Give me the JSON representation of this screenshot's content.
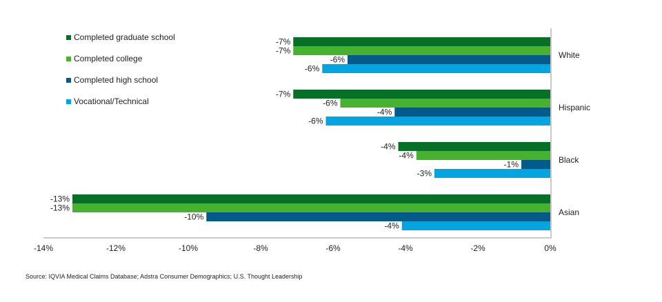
{
  "chart_data": {
    "type": "bar",
    "orientation": "horizontal",
    "title": "",
    "xlabel": "",
    "ylabel": "",
    "xlim": [
      -14,
      0
    ],
    "x_ticks": [
      "-14%",
      "-12%",
      "-10%",
      "-8%",
      "-6%",
      "-4%",
      "-2%",
      "0%"
    ],
    "x_tick_values": [
      -14,
      -12,
      -10,
      -8,
      -6,
      -4,
      -2,
      0
    ],
    "categories": [
      "White",
      "Hispanic",
      "Black",
      "Asian"
    ],
    "series": [
      {
        "name": "Completed graduate school",
        "color": "#077027",
        "values": [
          -7.1,
          -7.1,
          -4.2,
          -13.2
        ],
        "labels": [
          "-7%",
          "-7%",
          "-4%",
          "-13%"
        ]
      },
      {
        "name": "Completed college",
        "color": "#46b22d",
        "values": [
          -7.1,
          -5.8,
          -3.7,
          -13.2
        ],
        "labels": [
          "-7%",
          "-6%",
          "-4%",
          "-13%"
        ]
      },
      {
        "name": "Completed high school",
        "color": "#045a8a",
        "values": [
          -5.6,
          -4.3,
          -0.8,
          -9.5
        ],
        "labels": [
          "-6%",
          "-4%",
          "-1%",
          "-10%"
        ]
      },
      {
        "name": "Vocational/Technical",
        "color": "#03a5e0",
        "values": [
          -6.3,
          -6.2,
          -3.2,
          -4.1
        ],
        "labels": [
          "-6%",
          "-6%",
          "-3%",
          "-4%"
        ]
      }
    ],
    "legend_position": "top-left",
    "grid": false
  },
  "source": "Source: IQVIA Medical Claims Database; Adstra Consumer Demographics; U.S. Thought Leadership"
}
